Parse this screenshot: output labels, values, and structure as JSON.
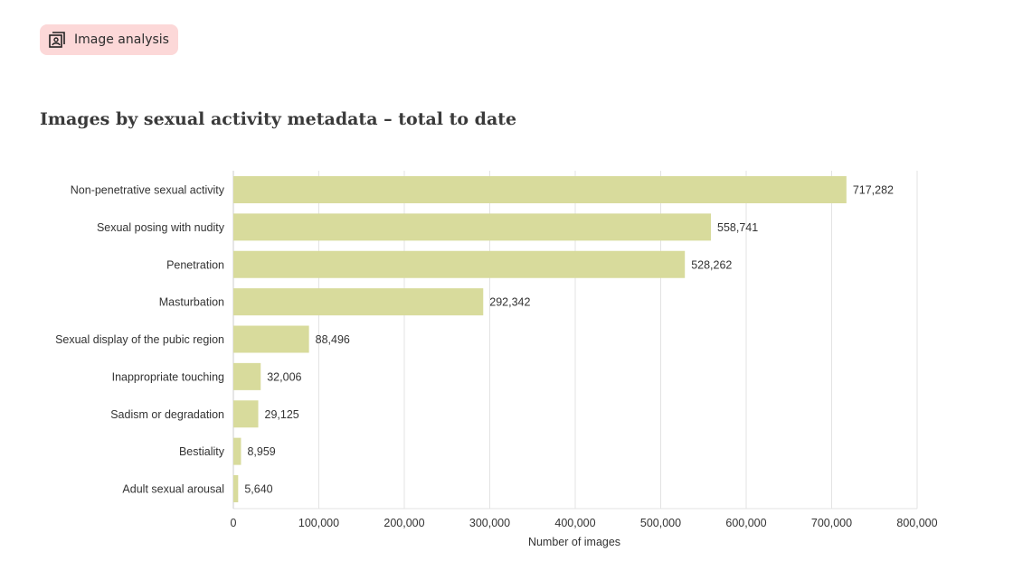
{
  "badge": {
    "label": "Image analysis",
    "icon": "image-analysis-icon",
    "background": "#fcd8d8"
  },
  "chart_data": {
    "type": "bar",
    "orientation": "horizontal",
    "title": "Images by sexual activity metadata – total to date",
    "xlabel": "Number of images",
    "ylabel": "",
    "xlim": [
      0,
      800000
    ],
    "xticks": [
      0,
      100000,
      200000,
      300000,
      400000,
      500000,
      600000,
      700000,
      800000
    ],
    "xtick_labels": [
      "0",
      "100,000",
      "200,000",
      "300,000",
      "400,000",
      "500,000",
      "600,000",
      "700,000",
      "800,000"
    ],
    "grid": "vertical",
    "bar_color": "#d8db9c",
    "categories": [
      "Non-penetrative sexual activity",
      "Sexual posing with nudity",
      "Penetration",
      "Masturbation",
      "Sexual display of the pubic region",
      "Inappropriate touching",
      "Sadism or degradation",
      "Bestiality",
      "Adult sexual arousal"
    ],
    "values": [
      717282,
      558741,
      528262,
      292342,
      88496,
      32006,
      29125,
      8959,
      5640
    ],
    "value_labels": [
      "717,282",
      "558,741",
      "528,262",
      "292,342",
      "88,496",
      "32,006",
      "29,125",
      "8,959",
      "5,640"
    ]
  }
}
